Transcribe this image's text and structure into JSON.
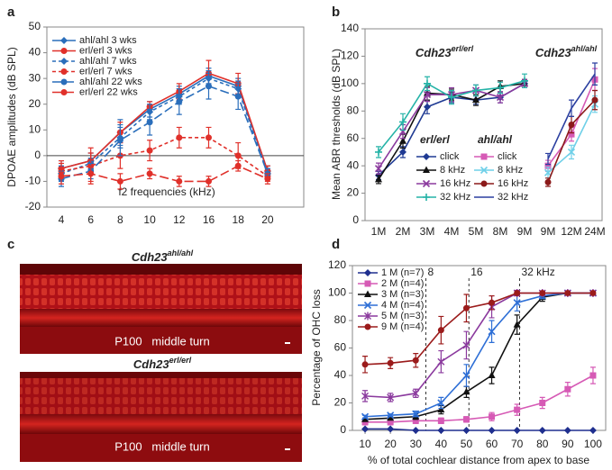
{
  "chart_data": [
    {
      "type": "line",
      "panel_label": "a",
      "y_label": "DPOAE amplitudes (dB SPL)",
      "x_label": "f2 frequencies (kHz)",
      "categories": [
        "4",
        "6",
        "8",
        "10",
        "12",
        "16",
        "18",
        "20"
      ],
      "ylim": [
        -20,
        50
      ],
      "yticks": [
        -20,
        -10,
        0,
        10,
        20,
        30,
        40,
        50
      ],
      "axis_crossing": 0,
      "series": [
        {
          "name": "ahl/ahl 3 wks",
          "color": "#2a6ebb",
          "marker": "diamond",
          "dash": "solid",
          "values": [
            -5,
            -2,
            9,
            18,
            24,
            31,
            27,
            -6
          ],
          "errors": [
            3,
            3,
            5,
            3,
            3,
            3,
            3,
            2
          ]
        },
        {
          "name": "erl/erl 3 wks",
          "color": "#e0302a",
          "marker": "circle",
          "dash": "solid",
          "values": [
            -5,
            -2,
            9,
            19,
            25,
            32,
            28,
            -6
          ],
          "errors": [
            3,
            3,
            4,
            2,
            3,
            5,
            4,
            2
          ]
        },
        {
          "name": "ahl/ahl 7 wks",
          "color": "#2a6ebb",
          "marker": "diamond",
          "dash": "dashed",
          "values": [
            -7,
            -3,
            7,
            17,
            23,
            30,
            26,
            -7
          ],
          "errors": [
            3,
            2,
            4,
            3,
            3,
            3,
            3,
            2
          ]
        },
        {
          "name": "erl/erl 7 wks",
          "color": "#e0302a",
          "marker": "circle",
          "dash": "dashed",
          "values": [
            -6,
            -4,
            0,
            2,
            7,
            7,
            0,
            -8
          ],
          "errors": [
            3,
            7,
            5,
            4,
            4,
            4,
            5,
            2
          ]
        },
        {
          "name": "ahl/ahl 22 wks",
          "color": "#2a6ebb",
          "marker": "circle",
          "dash": "longdash",
          "values": [
            -9,
            -6,
            6,
            13,
            21,
            27,
            23,
            -7
          ],
          "errors": [
            3,
            3,
            6,
            5,
            5,
            5,
            5,
            2
          ]
        },
        {
          "name": "erl/erl 22 wks",
          "color": "#e0302a",
          "marker": "circle",
          "dash": "longdash",
          "values": [
            -8,
            -7,
            -10,
            -7,
            -10,
            -10,
            -4,
            -9
          ],
          "errors": [
            3,
            3,
            3,
            2,
            2,
            2,
            2,
            2
          ]
        }
      ]
    },
    {
      "type": "line",
      "panel_label": "b",
      "y_label": "Mean ABR thresholds (dB SPL)",
      "ylim": [
        0,
        140
      ],
      "yticks": [
        0,
        20,
        40,
        60,
        80,
        100,
        120,
        140
      ],
      "panels": [
        {
          "title_main": "Cdh23",
          "title_sup": "erl/erl",
          "legend_title": "erl/erl",
          "categories": [
            "1M",
            "2M",
            "3M",
            "4M",
            "5M",
            "8M",
            "9M"
          ],
          "series": [
            {
              "name": "click",
              "color": "#1f3a93",
              "marker": "diamond",
              "values": [
                33,
                50,
                83,
                90,
                88,
                90,
                100
              ],
              "errors": [
                3,
                4,
                5,
                4,
                3,
                4,
                3
              ]
            },
            {
              "name": "8 kHz",
              "color": "#111111",
              "marker": "triangle",
              "values": [
                30,
                58,
                93,
                92,
                88,
                98,
                100
              ],
              "errors": [
                3,
                5,
                5,
                4,
                4,
                4,
                3
              ]
            },
            {
              "name": "16 kHz",
              "color": "#8b3a9e",
              "marker": "x",
              "values": [
                38,
                65,
                92,
                92,
                95,
                90,
                100
              ],
              "errors": [
                4,
                5,
                5,
                5,
                4,
                4,
                3
              ]
            },
            {
              "name": "32 kHz",
              "color": "#25b3a7",
              "marker": "plus",
              "values": [
                50,
                72,
                100,
                90,
                95,
                97,
                102
              ],
              "errors": [
                4,
                6,
                5,
                5,
                4,
                4,
                5
              ]
            }
          ]
        },
        {
          "title_main": "Cdh23",
          "title_sup": "ahl/ahl",
          "legend_title": "ahl/ahl",
          "categories": [
            "9M",
            "12M",
            "24M"
          ],
          "series": [
            {
              "name": "click",
              "color": "#d65ab5",
              "marker": "square",
              "values": [
                40,
                63,
                103
              ],
              "errors": [
                4,
                5,
                8
              ]
            },
            {
              "name": "8 kHz",
              "color": "#6fd0e8",
              "marker": "x",
              "values": [
                35,
                50,
                85
              ],
              "errors": [
                4,
                5,
                6
              ]
            },
            {
              "name": "16 kHz",
              "color": "#8b1a1a",
              "marker": "circle",
              "values": [
                28,
                70,
                88
              ],
              "errors": [
                3,
                6,
                7
              ]
            },
            {
              "name": "32 kHz",
              "color": "#2b3fa0",
              "marker": "none",
              "values": [
                45,
                82,
                107
              ],
              "errors": [
                4,
                6,
                8
              ]
            }
          ]
        }
      ]
    },
    {
      "type": "line",
      "panel_label": "d",
      "y_label": "Percentage of OHC loss",
      "x_label": "% of total cochlear distance from apex to base",
      "x": [
        10,
        20,
        30,
        40,
        50,
        60,
        70,
        80,
        90,
        100
      ],
      "xlim": [
        5,
        105
      ],
      "xticks": [
        10,
        20,
        30,
        40,
        50,
        60,
        70,
        80,
        90,
        100
      ],
      "ylim": [
        0,
        120
      ],
      "yticks": [
        0,
        20,
        40,
        60,
        80,
        100,
        120
      ],
      "vlines": [
        {
          "value": 34,
          "label": "8"
        },
        {
          "value": 51,
          "label": "16"
        },
        {
          "value": 71,
          "label": "32 kHz"
        }
      ],
      "series": [
        {
          "name": "1 M (n=7)",
          "color": "#1f2f8f",
          "marker": "diamond",
          "values": [
            1,
            1,
            0,
            0,
            0,
            0,
            0,
            0,
            0,
            0
          ]
        },
        {
          "name": "2 M (n=4)",
          "color": "#d65ab5",
          "marker": "square",
          "values": [
            6,
            6,
            7,
            7,
            8,
            10,
            15,
            20,
            30,
            40
          ],
          "errors": [
            2,
            2,
            2,
            2,
            2,
            3,
            4,
            4,
            5,
            6
          ]
        },
        {
          "name": "3 M (n=3)",
          "color": "#111111",
          "marker": "triangle",
          "values": [
            8,
            9,
            10,
            15,
            28,
            40,
            77,
            97,
            100,
            100
          ],
          "errors": [
            1,
            1,
            2,
            3,
            4,
            6,
            7,
            3,
            1,
            1
          ]
        },
        {
          "name": "4 M (n=4)",
          "color": "#2e6fd6",
          "marker": "x",
          "values": [
            10,
            11,
            12,
            20,
            40,
            72,
            93,
            98,
            100,
            100
          ],
          "errors": [
            1,
            1,
            2,
            4,
            8,
            8,
            6,
            2,
            1,
            1
          ]
        },
        {
          "name": "5 M (n=3)",
          "color": "#8b3a9e",
          "marker": "star",
          "values": [
            25,
            24,
            27,
            50,
            62,
            90,
            100,
            100,
            100,
            100
          ],
          "errors": [
            4,
            3,
            3,
            8,
            10,
            8,
            2,
            1,
            1,
            1
          ]
        },
        {
          "name": "9 M (n=4)",
          "color": "#9b1b1b",
          "marker": "circle",
          "values": [
            48,
            49,
            51,
            73,
            89,
            93,
            100,
            100,
            100,
            100
          ],
          "errors": [
            6,
            4,
            5,
            10,
            10,
            5,
            1,
            1,
            1,
            1
          ]
        }
      ]
    }
  ],
  "image_panel": {
    "panel_label": "c",
    "images": [
      {
        "title_main": "Cdh23",
        "title_sup": "ahl/ahl",
        "caption": "P100   middle turn"
      },
      {
        "title_main": "Cdh23",
        "title_sup": "erl/erl",
        "caption": "P100   middle turn"
      }
    ]
  }
}
